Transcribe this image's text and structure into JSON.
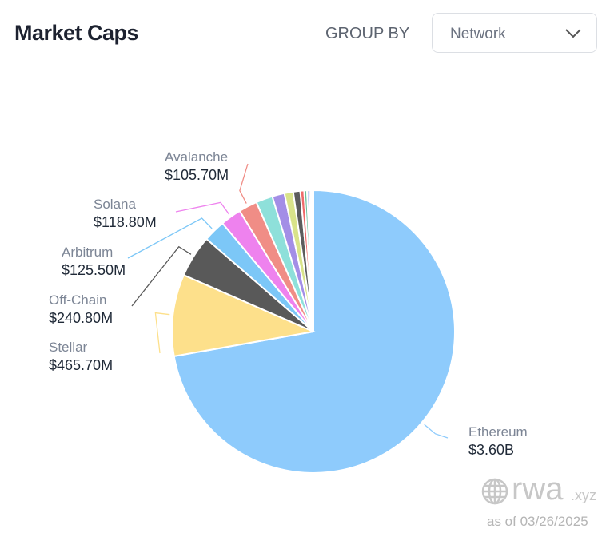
{
  "header": {
    "title": "Market Caps",
    "group_by_label": "GROUP BY",
    "group_by_value": "Network"
  },
  "footer": {
    "logo_text": "rwa",
    "logo_suffix": ".xyz",
    "as_of": "as of 03/26/2025"
  },
  "chart_data": {
    "type": "pie",
    "slices": [
      {
        "name": "Ethereum",
        "label": "$3.60B",
        "value": 3600,
        "color": "#8ecbfc"
      },
      {
        "name": "Stellar",
        "label": "$465.70M",
        "value": 465.7,
        "color": "#fde08b"
      },
      {
        "name": "Off-Chain",
        "label": "$240.80M",
        "value": 240.8,
        "color": "#595959"
      },
      {
        "name": "Arbitrum",
        "label": "$125.50M",
        "value": 125.5,
        "color": "#7cc7f7"
      },
      {
        "name": "Solana",
        "label": "$118.80M",
        "value": 118.8,
        "color": "#ee82ee"
      },
      {
        "name": "Avalanche",
        "label": "$105.70M",
        "value": 105.7,
        "color": "#f08d86"
      },
      {
        "value": 95,
        "color": "#8ee0da"
      },
      {
        "value": 70,
        "color": "#a38ee6"
      },
      {
        "value": 50,
        "color": "#d9e38a"
      },
      {
        "value": 40,
        "color": "#5c5c5c"
      },
      {
        "value": 22,
        "color": "#ef6b6b"
      },
      {
        "value": 16,
        "color": "#6cbf9a"
      },
      {
        "value": 12,
        "color": "#8aa8ee"
      },
      {
        "value": 10,
        "color": "#b59ae6"
      },
      {
        "value": 8,
        "color": "#8ee0da"
      },
      {
        "value": 6,
        "color": "#a6e3a6"
      }
    ]
  }
}
